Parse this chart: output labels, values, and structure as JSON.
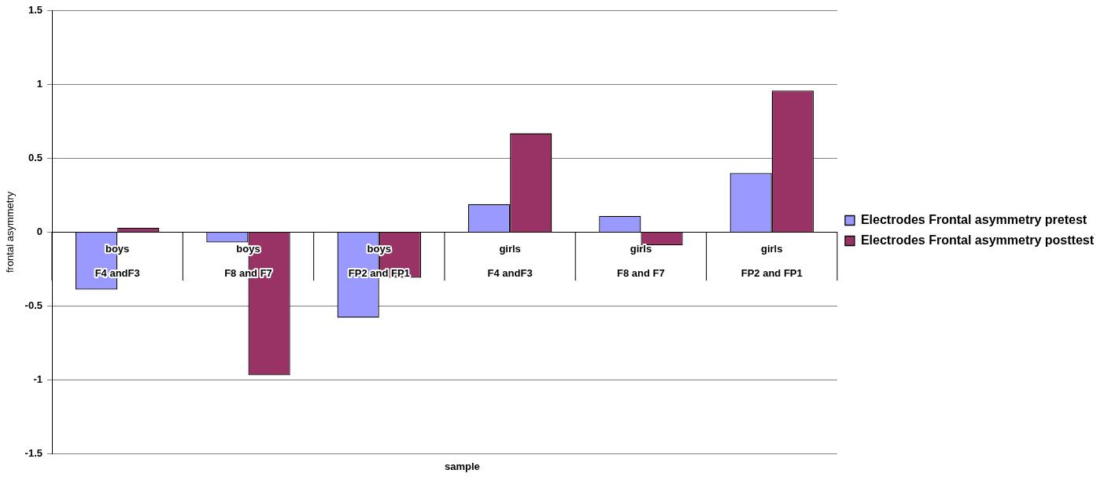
{
  "chart_data": {
    "type": "bar",
    "xlabel": "sample",
    "ylabel": "frontal asymmetry",
    "categories": [
      "boys\nF4 andF3",
      "boys\nF8 and F7",
      "boys\nFP2 and FP1",
      "girls\nF4 andF3",
      "girls\nF8 and F7",
      "girls\nFP2 and FP1"
    ],
    "series": [
      {
        "name": "Electrodes Frontal asymmetry pretest",
        "color": "#9999ff",
        "values": [
          -0.39,
          -0.07,
          -0.58,
          0.19,
          0.11,
          0.4
        ]
      },
      {
        "name": "Electrodes Frontal asymmetry posttest",
        "color": "#993366",
        "values": [
          0.03,
          -0.97,
          -0.31,
          0.67,
          -0.09,
          0.96
        ]
      }
    ],
    "ylim": [
      -1.5,
      1.5
    ],
    "yticks": [
      -1.5,
      -1,
      -0.5,
      0,
      0.5,
      1,
      1.5
    ],
    "grid": "y",
    "legend": "right"
  }
}
